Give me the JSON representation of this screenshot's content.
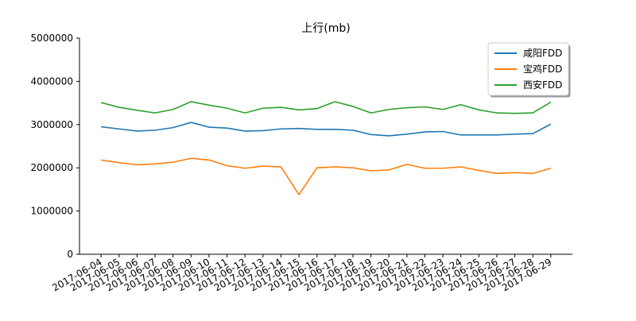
{
  "chart_data": {
    "type": "line",
    "title": "上行(mb)",
    "xlabel": "",
    "ylabel": "",
    "ylim": [
      0,
      5000000
    ],
    "yticks": [
      0,
      1000000,
      2000000,
      3000000,
      4000000,
      5000000
    ],
    "ytick_labels": [
      "0",
      "1000000",
      "2000000",
      "3000000",
      "4000000",
      "5000000"
    ],
    "categories": [
      "2017-06-04",
      "2017-06-05",
      "2017-06-06",
      "2017-06-07",
      "2017-06-08",
      "2017-06-09",
      "2017-06-10",
      "2017-06-11",
      "2017-06-12",
      "2017-06-13",
      "2017-06-14",
      "2017-06-15",
      "2017-06-16",
      "2017-06-17",
      "2017-06-18",
      "2017-06-19",
      "2017-06-20",
      "2017-06-21",
      "2017-06-22",
      "2017-06-23",
      "2017-06-24",
      "2017-06-25",
      "2017-06-26",
      "2017-06-27",
      "2017-06-28",
      "2017-06-29"
    ],
    "grid": false,
    "legend_position": "top-right",
    "series": [
      {
        "name": "咸阳FDD",
        "color": "#1f77b4",
        "values": [
          2950000,
          2900000,
          2850000,
          2870000,
          2930000,
          3050000,
          2940000,
          2920000,
          2850000,
          2860000,
          2900000,
          2910000,
          2890000,
          2890000,
          2870000,
          2770000,
          2740000,
          2780000,
          2830000,
          2840000,
          2760000,
          2760000,
          2760000,
          2780000,
          2790000,
          3010000
        ]
      },
      {
        "name": "宝鸡FDD",
        "color": "#ff7f0e",
        "values": [
          2180000,
          2120000,
          2070000,
          2090000,
          2130000,
          2220000,
          2180000,
          2050000,
          1990000,
          2040000,
          2020000,
          1380000,
          2000000,
          2020000,
          2000000,
          1930000,
          1950000,
          2080000,
          1990000,
          1990000,
          2020000,
          1940000,
          1870000,
          1890000,
          1870000,
          1990000
        ]
      },
      {
        "name": "西安FDD",
        "color": "#2ca02c",
        "values": [
          3510000,
          3400000,
          3330000,
          3270000,
          3350000,
          3530000,
          3450000,
          3380000,
          3270000,
          3380000,
          3400000,
          3340000,
          3370000,
          3530000,
          3420000,
          3270000,
          3350000,
          3390000,
          3410000,
          3350000,
          3460000,
          3340000,
          3270000,
          3260000,
          3270000,
          3520000
        ]
      }
    ]
  }
}
